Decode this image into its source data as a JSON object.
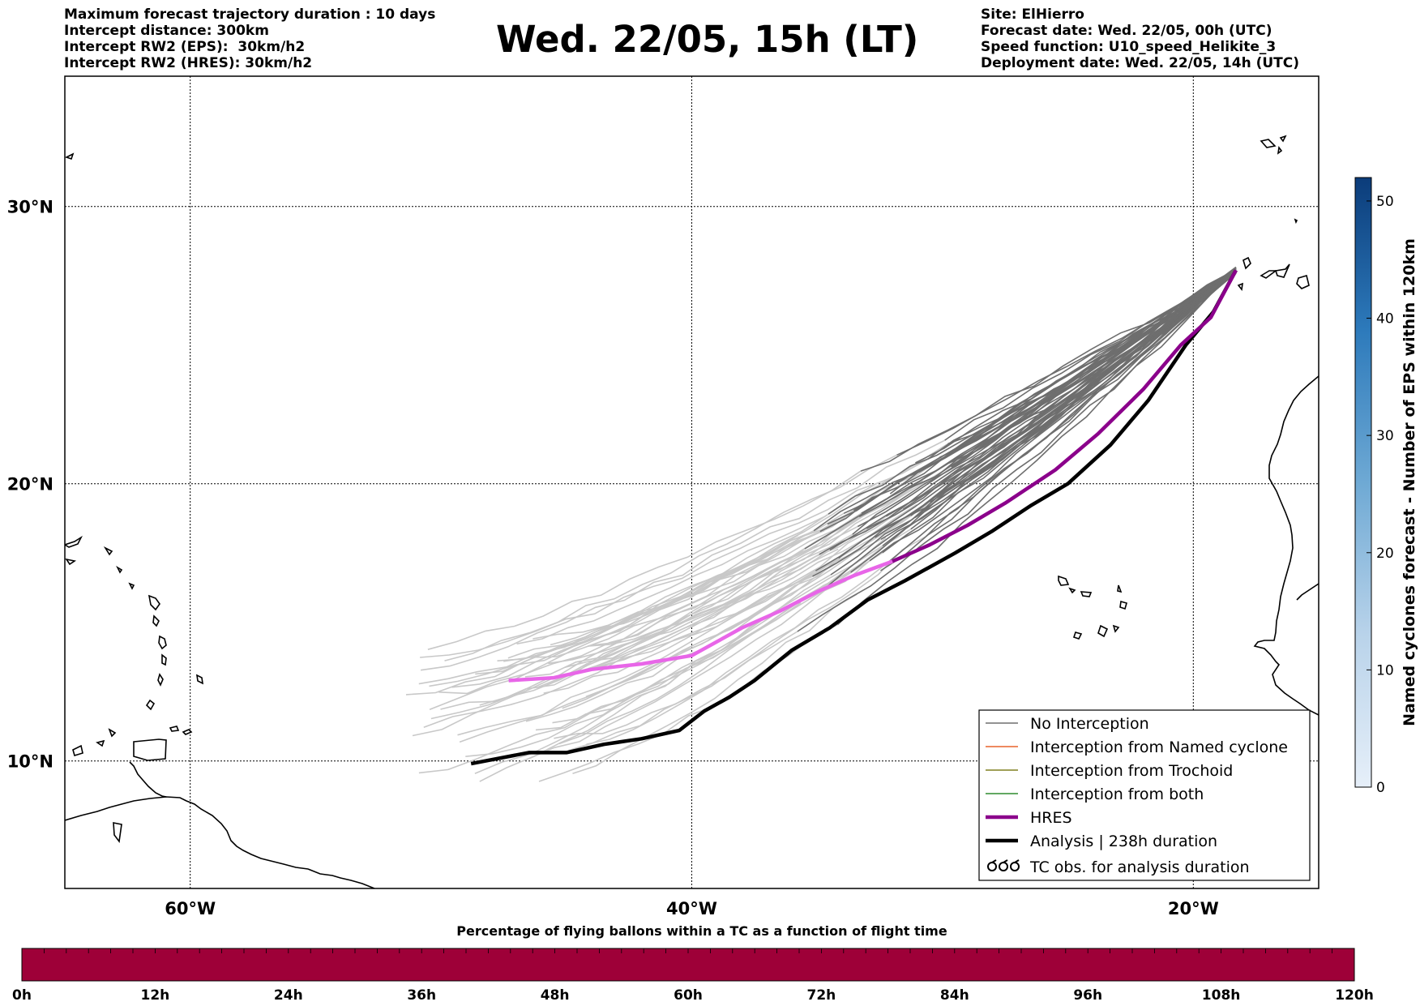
{
  "header": {
    "left": [
      "Maximum forecast trajectory duration : 10 days",
      "Intercept distance: 300km",
      "Intercept RW2 (EPS):  30km/h2",
      "Intercept RW2 (HRES): 30km/h2"
    ],
    "title": "Wed. 22/05, 15h (LT)",
    "right": [
      "Site: ElHierro",
      "Forecast date: Wed. 22/05, 00h (UTC)",
      "Speed function: U10_speed_Helikite_3",
      "Deployment date: Wed. 22/05, 14h (UTC)"
    ]
  },
  "map": {
    "lat_labels": [
      "30°N",
      "20°N",
      "10°N"
    ],
    "lon_labels": [
      "60°W",
      "40°W",
      "20°W"
    ],
    "lat_values": [
      30,
      20,
      10
    ],
    "lon_values": [
      -60,
      -40,
      -20
    ],
    "extent": {
      "lon_min": -65,
      "lon_max": -15,
      "lat_min": 5.4,
      "lat_max": 34.7
    }
  },
  "legend": {
    "items": [
      {
        "label": "No Interception",
        "color": "#6e6e6e",
        "style": "thin"
      },
      {
        "label": "Interception from Named cyclone",
        "color": "#e8632b",
        "style": "thin"
      },
      {
        "label": "Interception from Trochoid",
        "color": "#808020",
        "style": "thin"
      },
      {
        "label": "Interception from both",
        "color": "#2e8b2e",
        "style": "thin"
      },
      {
        "label": "HRES",
        "color": "#8b008b",
        "style": "thick"
      },
      {
        "label": "Analysis | 238h duration",
        "color": "#000000",
        "style": "thick"
      },
      {
        "label": "TC obs. for analysis duration",
        "color": "#000000",
        "style": "symbol"
      }
    ]
  },
  "colorbar": {
    "label": "Named cyclones forecast - Number of EPS within 120km",
    "ticks": [
      "0",
      "10",
      "20",
      "30",
      "40",
      "50"
    ],
    "tick_values": [
      0,
      10,
      20,
      30,
      40,
      50
    ],
    "max": 52,
    "color_low": "#e6eff9",
    "color_high": "#0b3c7a"
  },
  "timebar": {
    "title": "Percentage of flying ballons within a TC as a function of flight time",
    "ticks": [
      "0h",
      "12h",
      "24h",
      "36h",
      "48h",
      "60h",
      "72h",
      "84h",
      "96h",
      "108h",
      "120h"
    ],
    "fill_color": "#9e0038"
  },
  "tracks": {
    "origin": {
      "lon": -18.3,
      "lat": 27.7
    },
    "hres": [
      [
        -18.3,
        27.7
      ],
      [
        -19.3,
        26.0
      ],
      [
        -20.5,
        25.0
      ],
      [
        -22.0,
        23.4
      ],
      [
        -23.8,
        21.8
      ],
      [
        -25.5,
        20.5
      ],
      [
        -27.5,
        19.3
      ],
      [
        -29.0,
        18.5
      ],
      [
        -30.5,
        17.8
      ],
      [
        -32.0,
        17.2
      ],
      [
        -33.5,
        16.7
      ],
      [
        -35.0,
        16.1
      ],
      [
        -36.5,
        15.4
      ],
      [
        -38.0,
        14.8
      ],
      [
        -40.0,
        13.8
      ],
      [
        -42.0,
        13.5
      ],
      [
        -44.0,
        13.3
      ],
      [
        -45.5,
        13.0
      ],
      [
        -47.3,
        12.9
      ]
    ],
    "analysis": [
      [
        -18.3,
        27.7
      ],
      [
        -19.2,
        26.2
      ],
      [
        -20.3,
        25.0
      ],
      [
        -21.8,
        23.0
      ],
      [
        -23.3,
        21.4
      ],
      [
        -25.0,
        20.0
      ],
      [
        -26.5,
        19.2
      ],
      [
        -28.0,
        18.3
      ],
      [
        -29.5,
        17.5
      ],
      [
        -31.5,
        16.5
      ],
      [
        -33.0,
        15.8
      ],
      [
        -34.5,
        14.8
      ],
      [
        -36.0,
        14.0
      ],
      [
        -37.5,
        12.9
      ],
      [
        -38.5,
        12.3
      ],
      [
        -39.5,
        11.8
      ],
      [
        -40.5,
        11.1
      ],
      [
        -42.0,
        10.8
      ],
      [
        -43.5,
        10.6
      ],
      [
        -45.0,
        10.3
      ],
      [
        -46.5,
        10.3
      ],
      [
        -48.8,
        9.9
      ]
    ]
  }
}
